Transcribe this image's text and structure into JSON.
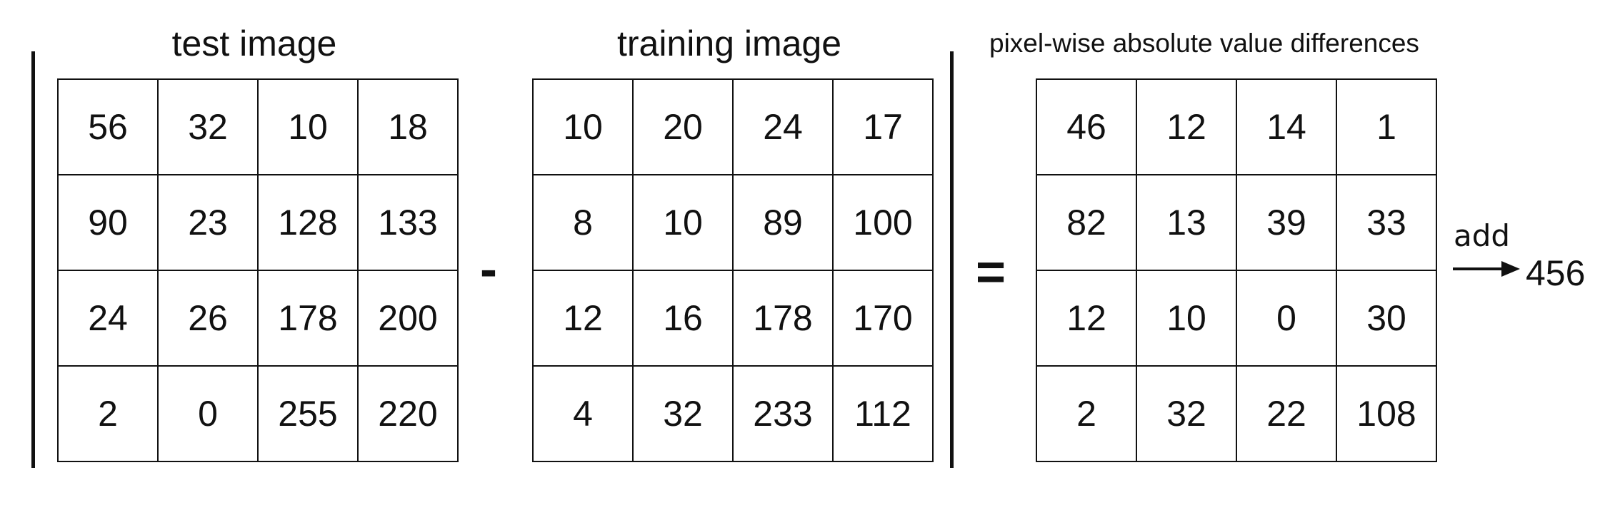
{
  "titles": {
    "test": "test image",
    "training": "training image",
    "difference": "pixel-wise absolute value differences"
  },
  "operators": {
    "minus": "-",
    "equals": "="
  },
  "test_image": [
    [
      "56",
      "32",
      "10",
      "18"
    ],
    [
      "90",
      "23",
      "128",
      "133"
    ],
    [
      "24",
      "26",
      "178",
      "200"
    ],
    [
      "2",
      "0",
      "255",
      "220"
    ]
  ],
  "training_image": [
    [
      "10",
      "20",
      "24",
      "17"
    ],
    [
      "8",
      "10",
      "89",
      "100"
    ],
    [
      "12",
      "16",
      "178",
      "170"
    ],
    [
      "4",
      "32",
      "233",
      "112"
    ]
  ],
  "difference_image": [
    [
      "46",
      "12",
      "14",
      "1"
    ],
    [
      "82",
      "13",
      "39",
      "33"
    ],
    [
      "12",
      "10",
      "0",
      "30"
    ],
    [
      "2",
      "32",
      "22",
      "108"
    ]
  ],
  "sum": {
    "label": "add",
    "value": "456"
  }
}
